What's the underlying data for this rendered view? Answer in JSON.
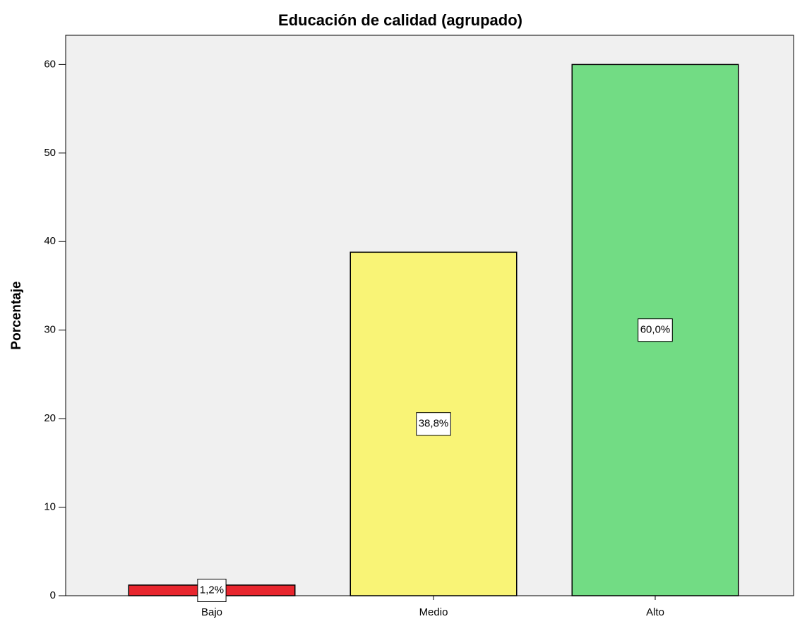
{
  "chart_data": {
    "type": "bar",
    "title": "Educación de calidad (agrupado)",
    "y_label": "Porcentaje",
    "categories": [
      "Bajo",
      "Medio",
      "Alto"
    ],
    "values": [
      1.2,
      38.8,
      60.0
    ],
    "value_labels": [
      "1,2%",
      "38,8%",
      "60,0%"
    ],
    "colors": [
      "#e8262e",
      "#f9f476",
      "#72dc84"
    ],
    "ylim": [
      0,
      63.3
    ],
    "yticks": [
      0,
      10,
      20,
      30,
      40,
      50,
      60
    ],
    "grid": false
  }
}
